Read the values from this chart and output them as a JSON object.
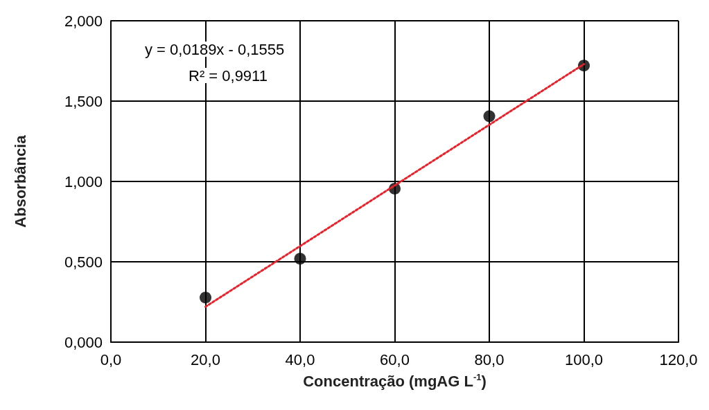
{
  "chart_data": {
    "type": "scatter",
    "xlabel": "Concentração (mgAG L$^{-1}$)",
    "ylabel": "Absorbância",
    "x": [
      20,
      40,
      60,
      80,
      100
    ],
    "series": [
      {
        "color": "#000000",
        "marker": "circle",
        "values": [
          0.277,
          0.519,
          0.955,
          1.406,
          1.721
        ]
      },
      {
        "type": "line",
        "color": "#e8212b",
        "line_style": "dotted",
        "marker": "none",
        "x": [
          20,
          100
        ],
        "values": [
          0.22,
          1.73
        ]
      }
    ],
    "annotations": [
      "y = 0,0189x - 0,1555",
      "R² = 0,9911"
    ],
    "xlim": [
      0,
      120
    ],
    "xticks": [
      {
        "value": 0,
        "label": "0,0"
      },
      {
        "value": 20,
        "label": "20,0"
      },
      {
        "value": 40,
        "label": "40,0"
      },
      {
        "value": 60,
        "label": "60,0"
      },
      {
        "value": 80,
        "label": "80,0"
      },
      {
        "value": 100,
        "label": "100,0"
      },
      {
        "value": 120,
        "label": "120,0"
      }
    ],
    "ylim": [
      0,
      2
    ],
    "yticks": [
      {
        "value": 0,
        "label": "0,000"
      },
      {
        "value": 0.5,
        "label": "0,500"
      },
      {
        "value": 1,
        "label": "1,000"
      },
      {
        "value": 1.5,
        "label": "1,500"
      },
      {
        "value": 2,
        "label": "2,000"
      }
    ],
    "grid": true
  }
}
